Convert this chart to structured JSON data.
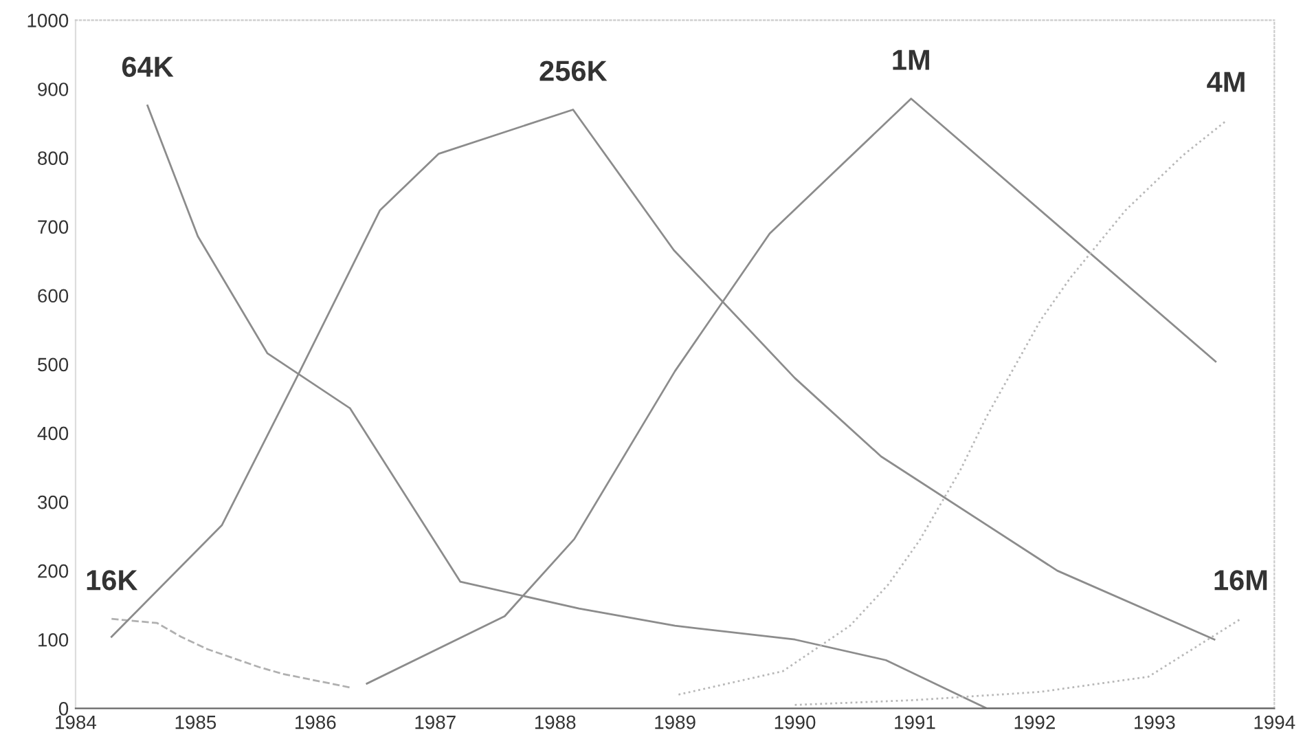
{
  "chart_data": {
    "type": "line",
    "xlim": [
      1984,
      1994
    ],
    "xticks": [
      1984,
      1985,
      1986,
      1987,
      1988,
      1989,
      1990,
      1991,
      1992,
      1993,
      1994
    ],
    "ylim": [
      0,
      1000
    ],
    "yticks": [
      0,
      100,
      200,
      300,
      400,
      500,
      600,
      700,
      800,
      900,
      1000
    ],
    "grid": false,
    "legend": false,
    "marker": "none",
    "series": [
      {
        "name": "16K",
        "color": "#b0b0b0",
        "line_style": "dashed",
        "x": [
          1984.3,
          1984.68,
          1984.88,
          1985.1,
          1985.53,
          1985.73,
          1986.3
        ],
        "values": [
          130,
          124,
          104,
          86,
          60,
          50,
          30
        ]
      },
      {
        "name": "64K",
        "color": "#8c8c8c",
        "line_style": "solid",
        "x": [
          1984.6,
          1985.02,
          1985.6,
          1986.29,
          1987.21,
          1988.2,
          1989,
          1990,
          1990.76,
          1991.6,
          1994
        ],
        "values": [
          876,
          686,
          516,
          436,
          184,
          145,
          120,
          100,
          70,
          0,
          0
        ]
      },
      {
        "name": "256K",
        "color": "#8c8c8c",
        "line_style": "solid",
        "x": [
          1984.3,
          1985.22,
          1985.86,
          1986.54,
          1987.03,
          1988.15,
          1988.99,
          1990,
          1990.72,
          1992.19,
          1993.5
        ],
        "values": [
          104,
          266,
          486,
          724,
          806,
          870,
          666,
          480,
          366,
          200,
          100
        ]
      },
      {
        "name": "1M",
        "color": "#8c8c8c",
        "line_style": "solid",
        "x": [
          1986.43,
          1987.58,
          1988.16,
          1989.0,
          1989.79,
          1990.97,
          1993.51
        ],
        "values": [
          36,
          134,
          246,
          490,
          690,
          886,
          504
        ]
      },
      {
        "name": "4M",
        "color": "#b8b8b8",
        "line_style": "dotted",
        "x": [
          1989.03,
          1989.9,
          1990.46,
          1990.78,
          1991.04,
          1991.38,
          1991.6,
          1992.05,
          1992.3,
          1992.76,
          1993.24,
          1993.6
        ],
        "values": [
          20,
          54,
          120,
          180,
          244,
          346,
          424,
          564,
          626,
          724,
          804,
          854
        ]
      },
      {
        "name": "16M",
        "color": "#b8b8b8",
        "line_style": "dotted",
        "x": [
          1990,
          1991,
          1992.05,
          1992.95,
          1993.72
        ],
        "values": [
          5,
          12,
          24,
          46,
          130
        ]
      }
    ]
  }
}
